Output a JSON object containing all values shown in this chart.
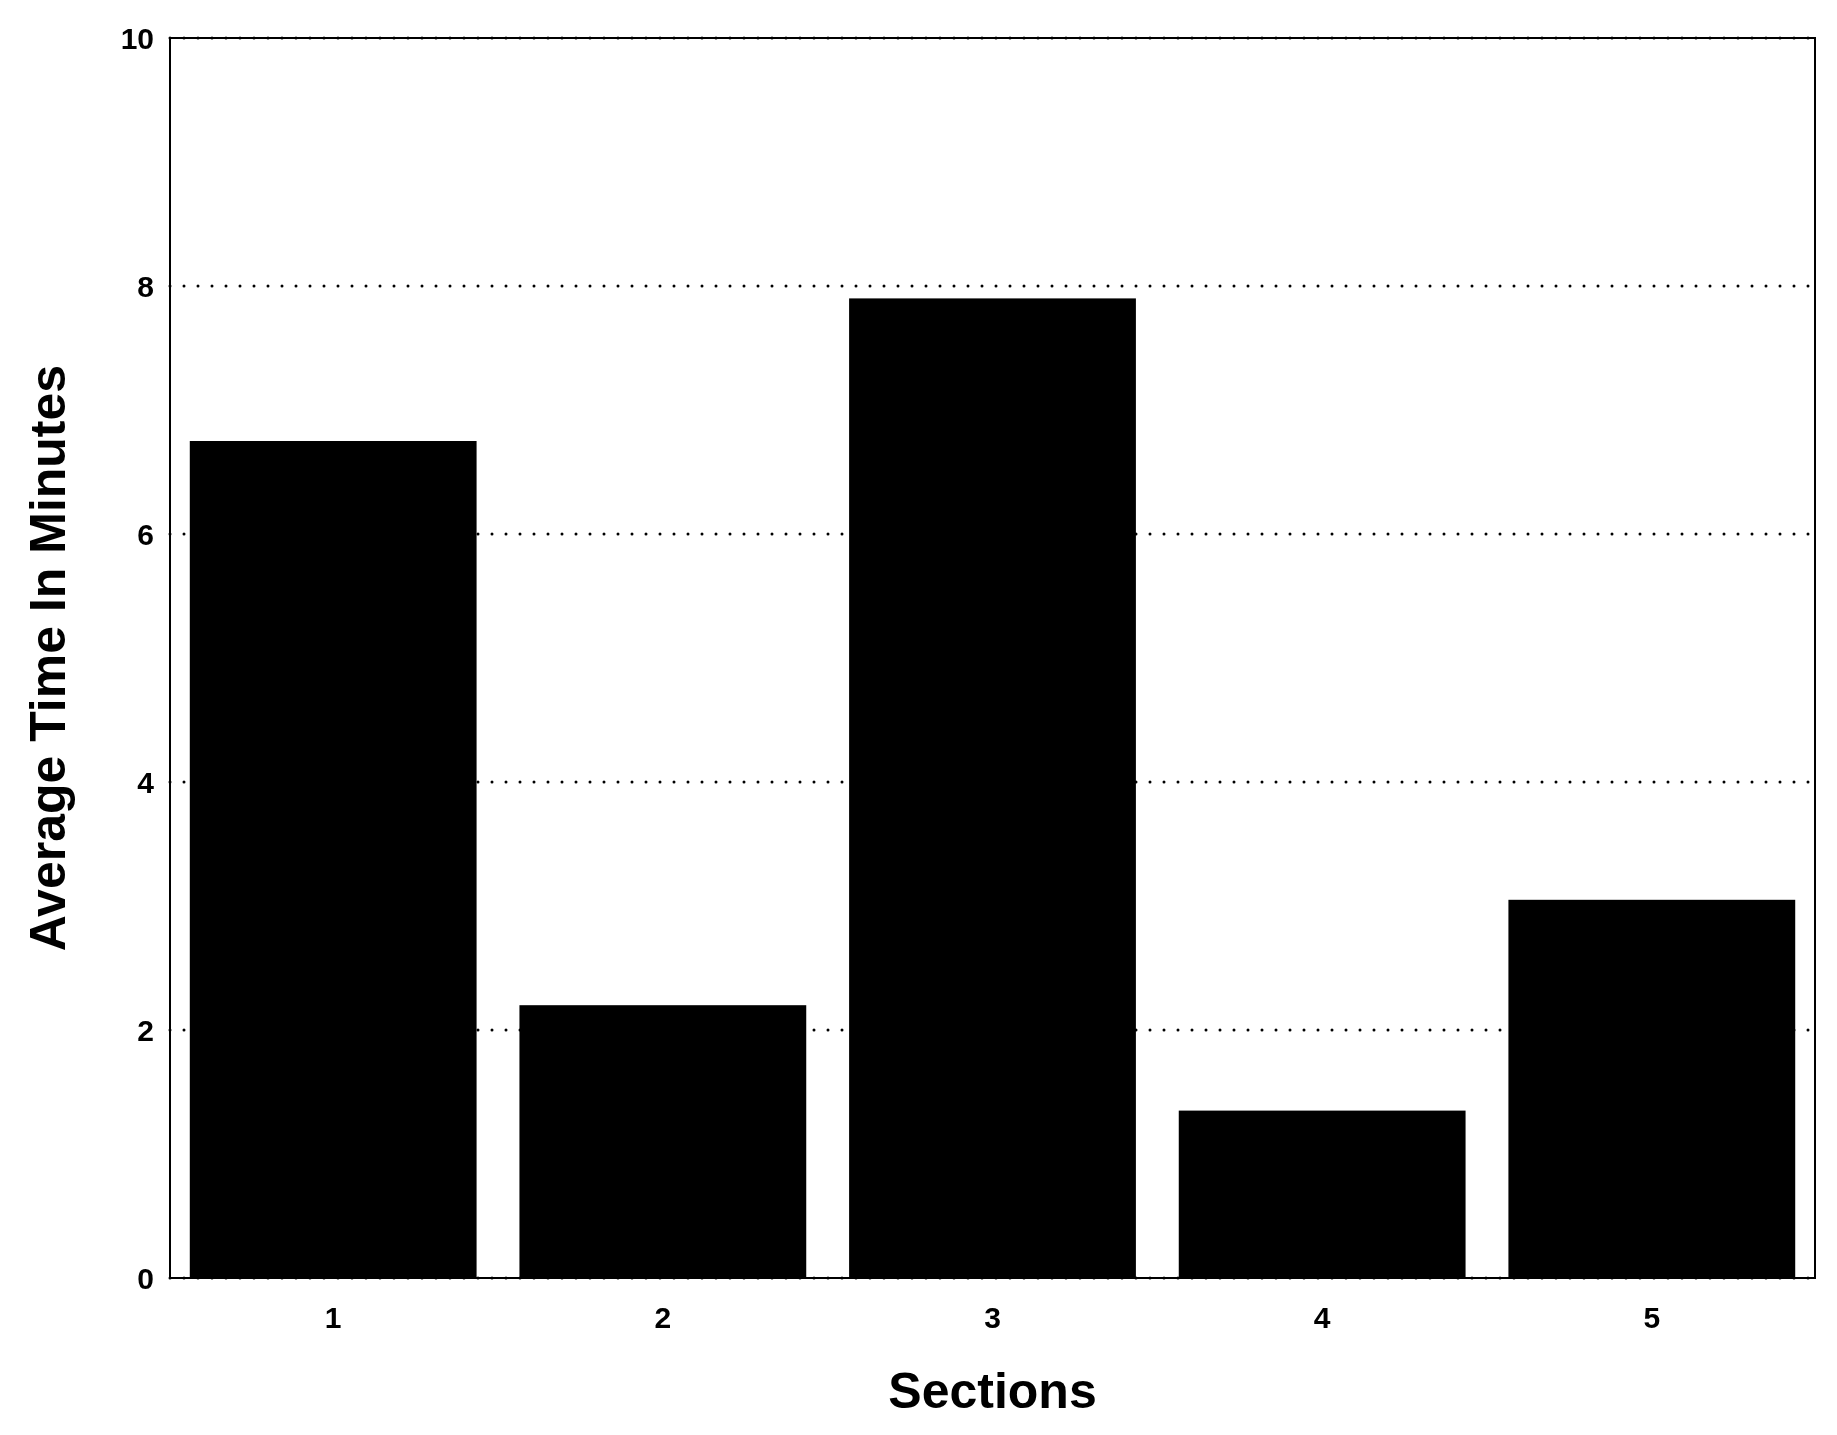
{
  "chart_data": {
    "type": "bar",
    "xlabel": "Sections",
    "ylabel": "Average Time In Minutes",
    "categories": [
      "1",
      "2",
      "3",
      "4",
      "5"
    ],
    "values": [
      6.75,
      2.2,
      7.9,
      1.35,
      3.05
    ],
    "color": "#000000",
    "ylim": [
      0,
      10
    ],
    "yticks": [
      0,
      2,
      4,
      6,
      8,
      10
    ],
    "grid": "y"
  }
}
